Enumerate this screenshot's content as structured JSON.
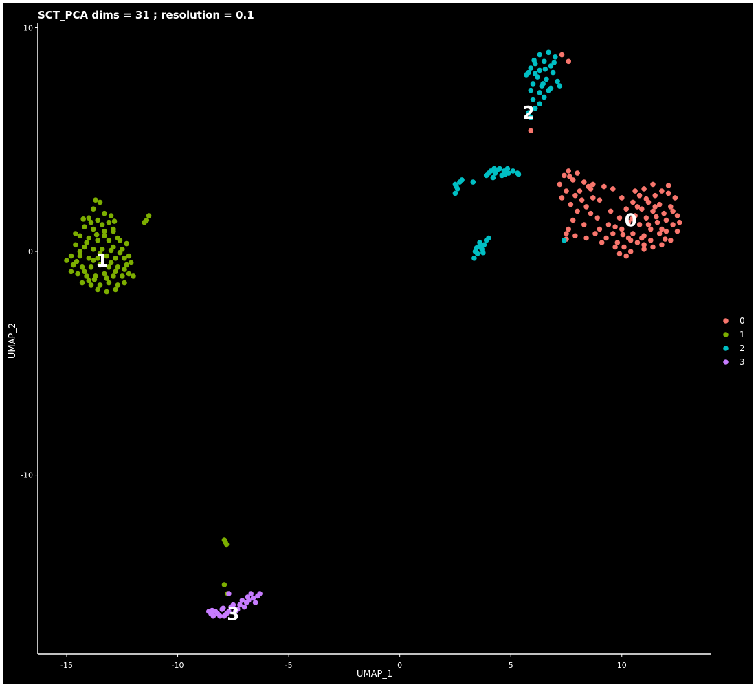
{
  "chart_data": {
    "type": "scatter",
    "title": "SCT_PCA dims =  31 ; resolution = 0.1",
    "xlabel": "UMAP_1",
    "ylabel": "UMAP_2",
    "xlim": [
      -16.3,
      14
    ],
    "ylim": [
      -18,
      10.2
    ],
    "xticks": [
      -15,
      -10,
      -5,
      0,
      5,
      10
    ],
    "yticks": [
      -10,
      0,
      10
    ],
    "grid": false,
    "legend_position": "right",
    "series": [
      {
        "name": "0",
        "color": "#F8766D",
        "label_position": [
          10.4,
          1.4
        ],
        "points": [
          [
            7.4,
            3.4
          ],
          [
            7.6,
            3.6
          ],
          [
            7.8,
            3.2
          ],
          [
            8.0,
            3.5
          ],
          [
            7.2,
            3.0
          ],
          [
            8.3,
            3.1
          ],
          [
            8.5,
            2.9
          ],
          [
            8.7,
            3.0
          ],
          [
            7.5,
            2.7
          ],
          [
            7.9,
            2.5
          ],
          [
            8.2,
            2.3
          ],
          [
            8.4,
            2.0
          ],
          [
            7.7,
            2.1
          ],
          [
            8.0,
            1.8
          ],
          [
            8.6,
            1.7
          ],
          [
            7.8,
            1.4
          ],
          [
            8.3,
            1.2
          ],
          [
            8.9,
            1.5
          ],
          [
            9.2,
            2.9
          ],
          [
            9.6,
            2.8
          ],
          [
            7.5,
            0.8
          ],
          [
            7.9,
            0.7
          ],
          [
            8.4,
            0.6
          ],
          [
            9.0,
            1.0
          ],
          [
            9.4,
            1.2
          ],
          [
            9.0,
            2.3
          ],
          [
            7.3,
            2.4
          ],
          [
            7.6,
            1.0
          ],
          [
            8.8,
            0.8
          ],
          [
            9.3,
            0.6
          ],
          [
            9.8,
            0.4
          ],
          [
            10.1,
            0.2
          ],
          [
            10.4,
            0.0
          ],
          [
            9.9,
            -0.1
          ],
          [
            9.6,
            0.8
          ],
          [
            10.0,
            1.0
          ],
          [
            10.3,
            1.3
          ],
          [
            10.6,
            1.6
          ],
          [
            10.9,
            1.9
          ],
          [
            11.2,
            2.2
          ],
          [
            11.5,
            2.5
          ],
          [
            11.8,
            2.7
          ],
          [
            12.1,
            2.6
          ],
          [
            12.4,
            2.4
          ],
          [
            12.2,
            2.0
          ],
          [
            12.5,
            1.6
          ],
          [
            12.3,
            1.2
          ],
          [
            12.5,
            0.9
          ],
          [
            12.2,
            0.5
          ],
          [
            11.8,
            0.3
          ],
          [
            11.4,
            0.2
          ],
          [
            11.0,
            0.1
          ],
          [
            10.7,
            0.4
          ],
          [
            10.5,
            0.8
          ],
          [
            11.0,
            0.7
          ],
          [
            11.3,
            1.0
          ],
          [
            11.6,
            1.3
          ],
          [
            11.9,
            1.7
          ],
          [
            11.4,
            1.8
          ],
          [
            11.1,
            1.5
          ],
          [
            10.8,
            1.2
          ],
          [
            10.2,
            1.9
          ],
          [
            10.5,
            2.2
          ],
          [
            10.8,
            2.5
          ],
          [
            11.0,
            2.8
          ],
          [
            11.4,
            3.0
          ],
          [
            11.7,
            2.1
          ],
          [
            12.0,
            1.4
          ],
          [
            11.7,
            0.8
          ],
          [
            11.3,
            0.5
          ],
          [
            10.9,
            0.6
          ],
          [
            10.3,
            0.6
          ],
          [
            9.7,
            0.2
          ],
          [
            10.2,
            -0.2
          ],
          [
            11.2,
            1.2
          ],
          [
            12.0,
            0.9
          ],
          [
            12.6,
            1.3
          ],
          [
            11.5,
            2.0
          ],
          [
            10.6,
            2.7
          ],
          [
            10.0,
            2.4
          ],
          [
            9.5,
            1.8
          ],
          [
            8.1,
            2.7
          ],
          [
            8.7,
            2.4
          ],
          [
            11.8,
            1.0
          ],
          [
            10.7,
            2.0
          ],
          [
            9.9,
            1.5
          ],
          [
            11.0,
            0.3
          ],
          [
            12.3,
            1.8
          ],
          [
            7.5,
            0.55
          ],
          [
            7.65,
            3.35
          ],
          [
            9.1,
            0.4
          ],
          [
            8.6,
            2.8
          ],
          [
            10.4,
            0.5
          ],
          [
            11.1,
            2.35
          ],
          [
            12.1,
            2.95
          ],
          [
            9.7,
            1.1
          ],
          [
            10.05,
            0.75
          ],
          [
            11.95,
            0.55
          ],
          [
            10.45,
            1.45
          ],
          [
            11.55,
            1.55
          ],
          [
            7.6,
            8.5
          ],
          [
            7.3,
            8.8
          ],
          [
            5.9,
            5.4
          ]
        ]
      },
      {
        "name": "1",
        "color": "#7CAE00",
        "label_position": [
          -13.4,
          -0.4
        ],
        "points": [
          [
            -13.5,
            2.2
          ],
          [
            -13.8,
            1.9
          ],
          [
            -13.3,
            1.7
          ],
          [
            -14.0,
            1.5
          ],
          [
            -13.6,
            1.4
          ],
          [
            -13.1,
            1.3
          ],
          [
            -14.2,
            1.1
          ],
          [
            -13.8,
            1.0
          ],
          [
            -13.3,
            0.9
          ],
          [
            -12.9,
            1.0
          ],
          [
            -14.4,
            0.7
          ],
          [
            -14.0,
            0.6
          ],
          [
            -13.6,
            0.5
          ],
          [
            -13.1,
            0.5
          ],
          [
            -12.7,
            0.6
          ],
          [
            -14.6,
            0.3
          ],
          [
            -14.2,
            0.2
          ],
          [
            -13.8,
            0.1
          ],
          [
            -13.4,
            0.1
          ],
          [
            -12.9,
            0.2
          ],
          [
            -12.5,
            0.1
          ],
          [
            -14.8,
            -0.2
          ],
          [
            -14.4,
            -0.2
          ],
          [
            -14.0,
            -0.3
          ],
          [
            -13.6,
            -0.3
          ],
          [
            -13.2,
            -0.2
          ],
          [
            -12.8,
            -0.3
          ],
          [
            -12.4,
            -0.3
          ],
          [
            -14.7,
            -0.6
          ],
          [
            -14.3,
            -0.7
          ],
          [
            -13.9,
            -0.7
          ],
          [
            -13.5,
            -0.6
          ],
          [
            -13.1,
            -0.7
          ],
          [
            -12.7,
            -0.7
          ],
          [
            -12.3,
            -0.6
          ],
          [
            -14.5,
            -1.0
          ],
          [
            -14.1,
            -1.1
          ],
          [
            -13.7,
            -1.1
          ],
          [
            -13.3,
            -1.0
          ],
          [
            -12.9,
            -1.1
          ],
          [
            -12.5,
            -1.1
          ],
          [
            -12.2,
            -1.0
          ],
          [
            -14.3,
            -1.4
          ],
          [
            -13.9,
            -1.5
          ],
          [
            -13.5,
            -1.5
          ],
          [
            -13.1,
            -1.4
          ],
          [
            -12.7,
            -1.5
          ],
          [
            -12.4,
            -1.4
          ],
          [
            -13.6,
            -1.7
          ],
          [
            -13.2,
            -1.8
          ],
          [
            -12.8,
            -1.7
          ],
          [
            -14.8,
            -0.9
          ],
          [
            -15.0,
            -0.4
          ],
          [
            -12.2,
            -0.2
          ],
          [
            -12.6,
            0.5
          ],
          [
            -13.0,
            1.6
          ],
          [
            -13.7,
            2.3
          ],
          [
            -14.1,
            0.4
          ],
          [
            -13.3,
            0.7
          ],
          [
            -12.8,
            -0.9
          ],
          [
            -13.8,
            -0.4
          ],
          [
            -13.0,
            -0.5
          ],
          [
            -14.2,
            -0.9
          ],
          [
            -12.0,
            -1.1
          ],
          [
            -14.6,
            0.8
          ],
          [
            -11.3,
            1.6
          ],
          [
            -11.5,
            1.3
          ],
          [
            -11.4,
            1.4
          ],
          [
            -13.5,
            -0.1
          ],
          [
            -13.9,
            1.3
          ],
          [
            -12.4,
            -0.8
          ],
          [
            -14.0,
            -1.3
          ],
          [
            -12.9,
            0.9
          ],
          [
            -13.2,
            -1.2
          ],
          [
            -14.4,
            0.0
          ],
          [
            -12.1,
            -0.5
          ],
          [
            -13.4,
            1.2
          ],
          [
            -12.6,
            -0.05
          ],
          [
            -14.55,
            -0.45
          ],
          [
            -13.65,
            0.75
          ],
          [
            -12.3,
            0.35
          ],
          [
            -13.0,
            0.05
          ],
          [
            -13.75,
            -1.25
          ],
          [
            -12.85,
            1.35
          ],
          [
            -14.25,
            1.45
          ],
          [
            -7.9,
            -12.9
          ],
          [
            -7.8,
            -13.1
          ],
          [
            -7.85,
            -13.0
          ],
          [
            -7.9,
            -14.9
          ],
          [
            -7.75,
            -15.3
          ]
        ]
      },
      {
        "name": "2",
        "color": "#00BFC4",
        "label_position": [
          5.8,
          6.2
        ],
        "points": [
          [
            6.3,
            8.8
          ],
          [
            6.7,
            8.9
          ],
          [
            7.0,
            8.7
          ],
          [
            6.5,
            8.5
          ],
          [
            6.1,
            8.4
          ],
          [
            6.8,
            8.3
          ],
          [
            5.9,
            8.2
          ],
          [
            6.3,
            8.1
          ],
          [
            6.9,
            8.0
          ],
          [
            5.7,
            7.9
          ],
          [
            6.2,
            7.8
          ],
          [
            6.6,
            7.7
          ],
          [
            7.1,
            7.6
          ],
          [
            6.0,
            7.5
          ],
          [
            6.4,
            7.4
          ],
          [
            6.8,
            7.3
          ],
          [
            7.2,
            7.4
          ],
          [
            5.9,
            7.2
          ],
          [
            6.3,
            7.1
          ],
          [
            6.7,
            7.2
          ],
          [
            5.8,
            8.0
          ],
          [
            6.1,
            7.95
          ],
          [
            6.55,
            8.15
          ],
          [
            6.95,
            8.45
          ],
          [
            6.0,
            6.8
          ],
          [
            6.3,
            6.6
          ],
          [
            6.1,
            6.4
          ],
          [
            6.5,
            6.9
          ],
          [
            5.8,
            6.2
          ],
          [
            5.9,
            6.0
          ],
          [
            3.9,
            3.4
          ],
          [
            4.1,
            3.6
          ],
          [
            4.3,
            3.5
          ],
          [
            4.5,
            3.7
          ],
          [
            4.7,
            3.6
          ],
          [
            4.9,
            3.5
          ],
          [
            4.2,
            3.3
          ],
          [
            4.6,
            3.4
          ],
          [
            5.3,
            3.5
          ],
          [
            4.0,
            3.5
          ],
          [
            4.4,
            3.65
          ],
          [
            4.75,
            3.45
          ],
          [
            4.85,
            3.7
          ],
          [
            5.1,
            3.6
          ],
          [
            4.25,
            3.7
          ],
          [
            2.5,
            3.0
          ],
          [
            2.6,
            2.8
          ],
          [
            2.5,
            2.6
          ],
          [
            2.7,
            3.1
          ],
          [
            2.8,
            3.2
          ],
          [
            2.55,
            2.9
          ],
          [
            3.3,
            3.1
          ],
          [
            3.5,
            0.2
          ],
          [
            3.6,
            0.4
          ],
          [
            3.7,
            0.1
          ],
          [
            3.4,
            0.0
          ],
          [
            3.5,
            -0.1
          ],
          [
            3.9,
            0.5
          ],
          [
            3.8,
            0.3
          ],
          [
            3.35,
            -0.3
          ],
          [
            3.6,
            0.25
          ],
          [
            3.75,
            -0.05
          ],
          [
            3.45,
            0.15
          ],
          [
            4.0,
            0.6
          ],
          [
            7.4,
            0.5
          ],
          [
            6.45,
            7.5
          ],
          [
            6.05,
            8.55
          ],
          [
            5.35,
            3.45
          ]
        ]
      },
      {
        "name": "3",
        "color": "#C77CFF",
        "label_position": [
          -7.5,
          -16.2
        ],
        "points": [
          [
            -8.6,
            -16.1
          ],
          [
            -8.4,
            -16.3
          ],
          [
            -8.2,
            -16.2
          ],
          [
            -8.0,
            -16.0
          ],
          [
            -7.8,
            -16.2
          ],
          [
            -7.6,
            -15.9
          ],
          [
            -7.4,
            -16.1
          ],
          [
            -7.2,
            -15.8
          ],
          [
            -7.0,
            -15.9
          ],
          [
            -6.8,
            -15.6
          ],
          [
            -6.6,
            -15.5
          ],
          [
            -6.4,
            -15.4
          ],
          [
            -6.5,
            -15.7
          ],
          [
            -6.9,
            -15.7
          ],
          [
            -7.3,
            -16.0
          ],
          [
            -7.7,
            -16.1
          ],
          [
            -8.1,
            -16.3
          ],
          [
            -8.5,
            -16.2
          ],
          [
            -7.5,
            -15.8
          ],
          [
            -7.1,
            -15.6
          ],
          [
            -6.7,
            -15.3
          ],
          [
            -6.3,
            -15.3
          ],
          [
            -8.3,
            -16.1
          ],
          [
            -7.9,
            -16.3
          ],
          [
            -7.7,
            -15.3
          ],
          [
            -6.85,
            -15.45
          ],
          [
            -7.95,
            -15.95
          ],
          [
            -8.45,
            -16.05
          ]
        ]
      }
    ]
  }
}
